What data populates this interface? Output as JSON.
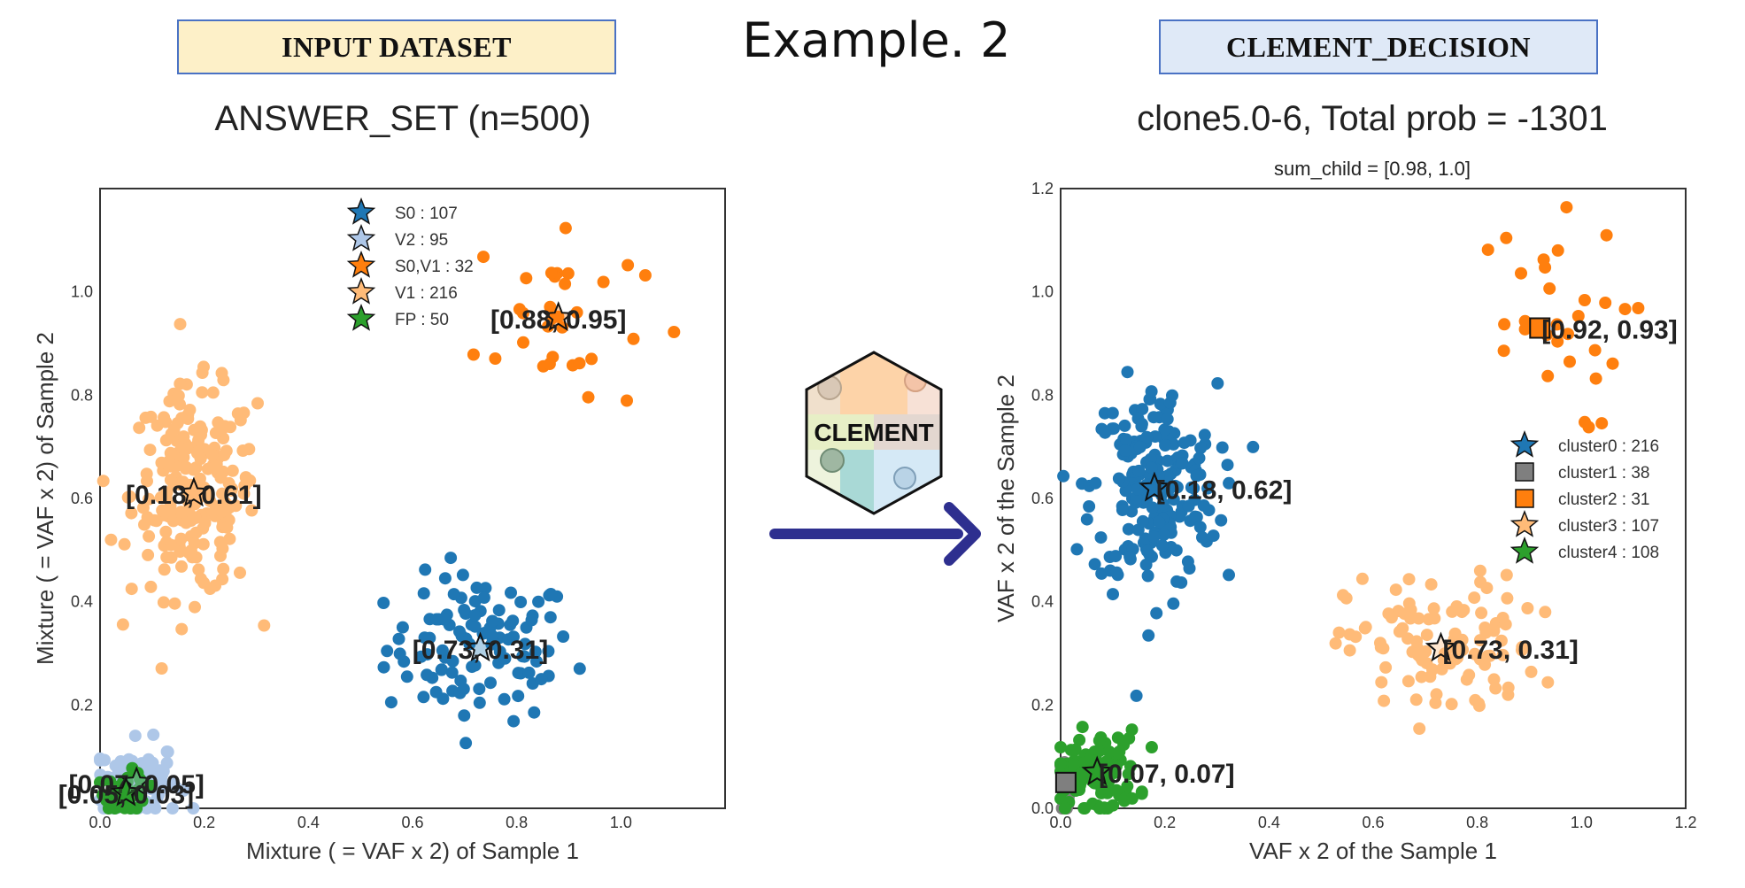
{
  "header": {
    "input_tag": "INPUT DATASET",
    "example_title": "Example. 2",
    "clement_tag": "CLEMENT_DECISION"
  },
  "logo": {
    "text": "CLEMENT"
  },
  "colors": {
    "blue": "#1f77b4",
    "light_blue": "#aec7e8",
    "orange": "#ff7f0e",
    "light_orange": "#ffbb78",
    "green": "#2ca02c",
    "gray": "#7f7f7f",
    "arrow": "#2e2f8f",
    "tag_border": "#4a72c4"
  },
  "chart_data": [
    {
      "type": "scatter",
      "title": "ANSWER_SET (n=500)",
      "xlabel": "Mixture ( = VAF x 2) of Sample 1",
      "ylabel": "Mixture ( = VAF x 2) of Sample 2",
      "xlim": [
        0.0,
        1.2
      ],
      "ylim": [
        0.0,
        1.2
      ],
      "xticks": [
        "0.0",
        "0.2",
        "0.4",
        "0.6",
        "0.8",
        "1.0"
      ],
      "yticks": [
        "0.2",
        "0.4",
        "0.6",
        "0.8",
        "1.0"
      ],
      "grid": false,
      "legend_position": "top-center",
      "series": [
        {
          "name": "S0 : 107",
          "color": "#1f77b4",
          "centroid": [
            0.73,
            0.31
          ],
          "centroid_label": "[0.73, 0.31]",
          "marker": "star",
          "n": 107,
          "spread": [
            0.09,
            0.07
          ]
        },
        {
          "name": "V2 : 95",
          "color": "#aec7e8",
          "centroid": [
            0.07,
            0.05
          ],
          "centroid_label": "[0.07, 0.05]",
          "marker": "star",
          "n": 95,
          "spread": [
            0.04,
            0.04
          ]
        },
        {
          "name": "S0,V1 : 32",
          "color": "#ff7f0e",
          "centroid": [
            0.88,
            0.95
          ],
          "centroid_label": "[0.88, 0.95]",
          "marker": "star",
          "n": 32,
          "spread": [
            0.08,
            0.1
          ]
        },
        {
          "name": "V1 : 216",
          "color": "#ffbb78",
          "centroid": [
            0.18,
            0.61
          ],
          "centroid_label": "[0.18, 0.61]",
          "marker": "star",
          "n": 216,
          "spread": [
            0.06,
            0.1
          ]
        },
        {
          "name": "FP : 50",
          "color": "#2ca02c",
          "centroid": [
            0.05,
            0.03
          ],
          "centroid_label": "[0.05, 0.03]",
          "marker": "star",
          "n": 50,
          "spread": [
            0.02,
            0.02
          ]
        }
      ]
    },
    {
      "type": "scatter",
      "title": "clone5.0-6,  Total prob = -1301",
      "subtitle": "sum_child = [0.98, 1.0]",
      "xlabel": "VAF x 2 of the Sample 1",
      "ylabel": "VAF x 2 of the Sample 2",
      "xlim": [
        0.0,
        1.2
      ],
      "ylim": [
        0.0,
        1.2
      ],
      "xticks": [
        "0.0",
        "0.2",
        "0.4",
        "0.6",
        "0.8",
        "1.0",
        "1.2"
      ],
      "yticks": [
        "0.0",
        "0.2",
        "0.4",
        "0.6",
        "0.8",
        "1.0",
        "1.2"
      ],
      "grid": false,
      "legend_position": "center-right",
      "series": [
        {
          "name": "cluster0 : 216",
          "color": "#1f77b4",
          "centroid": [
            0.18,
            0.62
          ],
          "centroid_label": "[0.18, 0.62]",
          "marker": "star",
          "n": 216,
          "spread": [
            0.06,
            0.1
          ]
        },
        {
          "name": "cluster1 : 38",
          "color": "#7f7f7f",
          "centroid": [
            0.01,
            0.05
          ],
          "centroid_label": "",
          "marker": "square",
          "n": 38,
          "spread": [
            0.005,
            0.03
          ]
        },
        {
          "name": "cluster2 : 31",
          "color": "#ff7f0e",
          "centroid": [
            0.92,
            0.93
          ],
          "centroid_label": "[0.92, 0.93]",
          "marker": "square",
          "n": 31,
          "spread": [
            0.08,
            0.1
          ]
        },
        {
          "name": "cluster3 : 107",
          "color": "#ffbb78",
          "centroid": [
            0.73,
            0.31
          ],
          "centroid_label": "[0.73, 0.31]",
          "marker": "star",
          "n": 107,
          "spread": [
            0.09,
            0.07
          ]
        },
        {
          "name": "cluster4 : 108",
          "color": "#2ca02c",
          "centroid": [
            0.07,
            0.07
          ],
          "centroid_label": "[0.07, 0.07]",
          "marker": "star",
          "n": 108,
          "spread": [
            0.04,
            0.04
          ]
        }
      ]
    }
  ]
}
